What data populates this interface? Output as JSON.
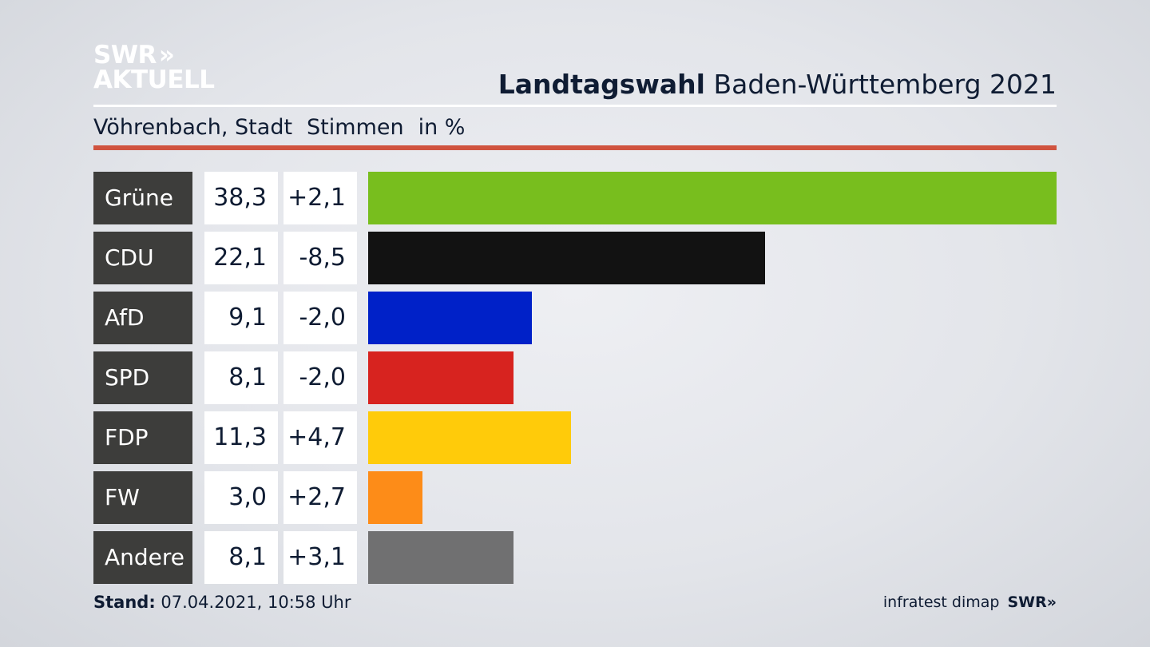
{
  "brand": {
    "line1": "SWR",
    "arrows": "»",
    "line2": "AKTUELL"
  },
  "header": {
    "title_bold": "Landtagswahl",
    "title_rest": " Baden-Württemberg 2021"
  },
  "subheader": {
    "place": "Vöhrenbach, Stadt",
    "measure": "Stimmen",
    "unit": "in %"
  },
  "chart_data": {
    "type": "bar",
    "orientation": "horizontal",
    "categories": [
      "Grüne",
      "CDU",
      "AfD",
      "SPD",
      "FDP",
      "FW",
      "Andere"
    ],
    "values": [
      38.3,
      22.1,
      9.1,
      8.1,
      11.3,
      3.0,
      8.1
    ],
    "value_labels": [
      "38,3",
      "22,1",
      "9,1",
      "8,1",
      "11,3",
      "3,0",
      "8,1"
    ],
    "changes": [
      "+2,1",
      "-8,5",
      "-2,0",
      "-2,0",
      "+4,7",
      "+2,7",
      "+3,1"
    ],
    "colors": [
      "#78be1e",
      "#121212",
      "#0021c8",
      "#d7231f",
      "#ffcb0a",
      "#fd8c18",
      "#707071"
    ],
    "xlim": [
      0,
      38.3
    ],
    "grid": false
  },
  "footer": {
    "stand_label": "Stand:",
    "stand_value": " 07.04.2021, 10:58 Uhr",
    "source": "infratest dimap",
    "source_brand": "SWR»"
  }
}
